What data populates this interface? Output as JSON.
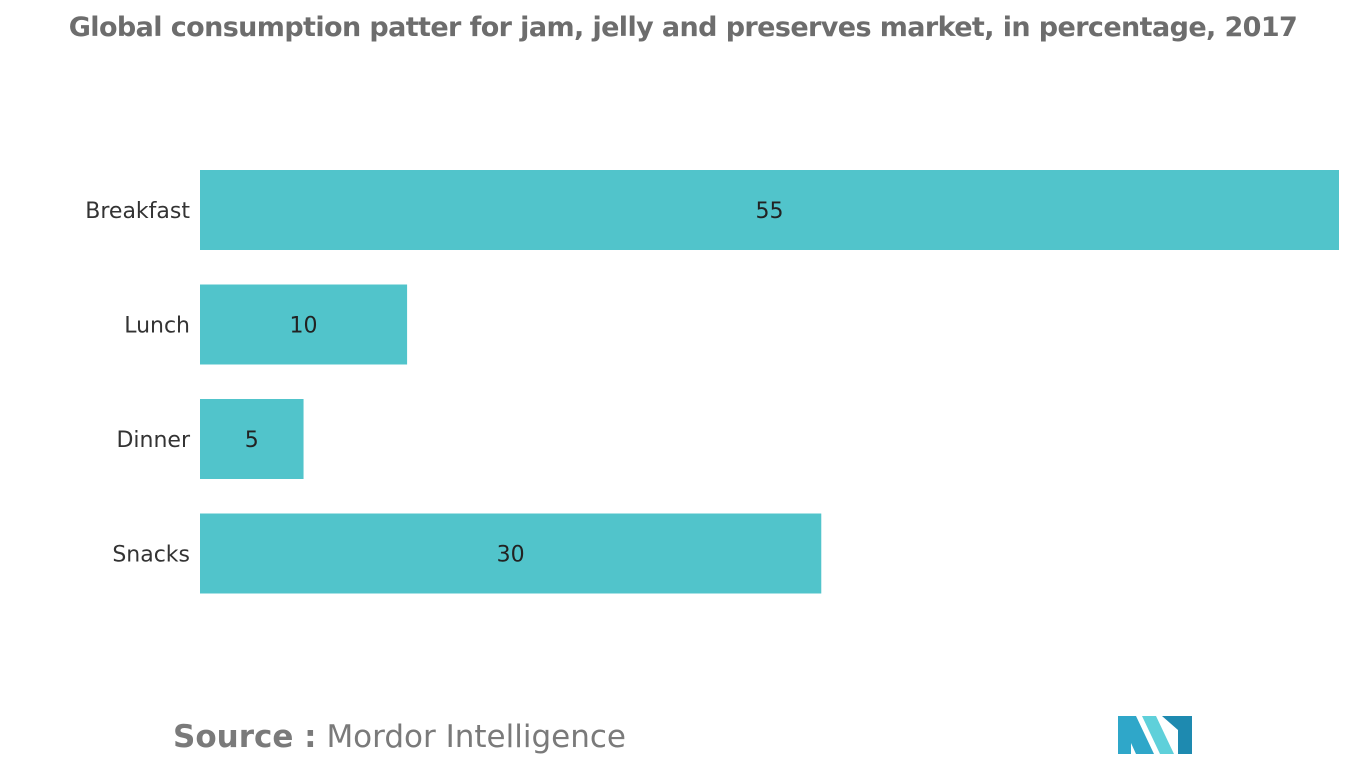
{
  "title": "Global consumption patter for jam, jelly and preserves market, in percentage, 2017",
  "source": {
    "label": "Source :",
    "text": "Mordor Intelligence"
  },
  "logo": {
    "icon": "mordor-intelligence-logo",
    "colors": [
      "#2fa7c9",
      "#1e8ab0",
      "#5fd0da"
    ]
  },
  "colors": {
    "bar": "#51c4cb",
    "title": "#6d6d6d",
    "source": "#7a7a7a"
  },
  "chart_data": {
    "type": "bar",
    "orientation": "horizontal",
    "categories": [
      "Breakfast",
      "Lunch",
      "Dinner",
      "Snacks"
    ],
    "values": [
      55,
      10,
      5,
      30
    ],
    "xlim": [
      0,
      55
    ],
    "grid": false,
    "legend": "none",
    "data_labels": true
  }
}
